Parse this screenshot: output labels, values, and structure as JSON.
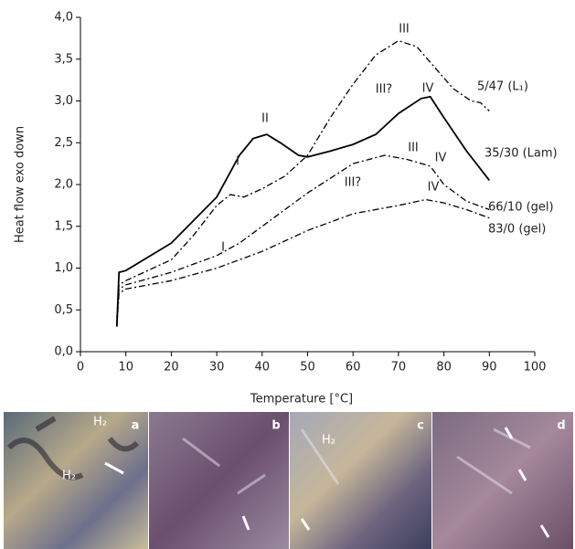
{
  "chart_data": {
    "type": "line",
    "xlabel": "Temperature [°C]",
    "ylabel": "Heat flow exo down",
    "xlim": [
      0,
      100
    ],
    "xticks": [
      0,
      10,
      20,
      30,
      40,
      50,
      60,
      70,
      80,
      90,
      100
    ],
    "ylim": [
      0,
      4
    ],
    "yticks": [
      {
        "value": 0,
        "label": "0,0"
      },
      {
        "value": 0.5,
        "label": "0,5"
      },
      {
        "value": 1,
        "label": "1,0"
      },
      {
        "value": 1.5,
        "label": "1,5"
      },
      {
        "value": 2,
        "label": "2,0"
      },
      {
        "value": 2.5,
        "label": "2,5"
      },
      {
        "value": 3,
        "label": "3,0"
      },
      {
        "value": 3.5,
        "label": "3,5"
      },
      {
        "value": 4,
        "label": "4,0"
      }
    ],
    "series": [
      {
        "name": "5/47 (L₁)",
        "color": "#000000",
        "dash": "dashdot",
        "x": [
          8,
          8.5,
          10,
          20,
          25,
          30,
          33,
          36,
          40,
          45,
          50,
          55,
          60,
          65,
          70,
          74,
          78,
          82,
          86,
          88,
          90
        ],
        "values": [
          0.4,
          0.8,
          0.85,
          1.1,
          1.4,
          1.75,
          1.88,
          1.85,
          1.95,
          2.1,
          2.35,
          2.8,
          3.2,
          3.55,
          3.72,
          3.65,
          3.4,
          3.15,
          3.0,
          2.98,
          2.88
        ]
      },
      {
        "name": "35/30 (Lam)",
        "color": "#000000",
        "dash": "solid",
        "x": [
          8,
          8.5,
          10,
          20,
          30,
          35,
          38,
          41,
          44,
          48,
          50,
          55,
          60,
          65,
          70,
          75,
          77,
          80,
          85,
          90
        ],
        "values": [
          0.3,
          0.95,
          0.97,
          1.3,
          1.85,
          2.35,
          2.55,
          2.6,
          2.5,
          2.35,
          2.33,
          2.4,
          2.48,
          2.6,
          2.85,
          3.03,
          3.05,
          2.8,
          2.4,
          2.05
        ]
      },
      {
        "name": "66/10 (gel)",
        "color": "#000000",
        "dash": "dashdot",
        "x": [
          8,
          8.5,
          10,
          20,
          30,
          35,
          40,
          50,
          60,
          67,
          72,
          77,
          80,
          85,
          90
        ],
        "values": [
          0.35,
          0.75,
          0.8,
          0.95,
          1.15,
          1.3,
          1.5,
          1.9,
          2.25,
          2.35,
          2.3,
          2.22,
          2.0,
          1.8,
          1.7
        ]
      },
      {
        "name": "83/0 (gel)",
        "color": "#000000",
        "dash": "dashdot",
        "x": [
          8,
          8.5,
          10,
          20,
          30,
          40,
          50,
          60,
          70,
          76,
          80,
          85,
          90
        ],
        "values": [
          0.3,
          0.7,
          0.75,
          0.85,
          1.0,
          1.2,
          1.45,
          1.65,
          1.75,
          1.82,
          1.78,
          1.7,
          1.6
        ]
      }
    ],
    "annotations": [
      "III",
      "II",
      "IV",
      "III?",
      "I",
      "III",
      "IV",
      "IV",
      "III?",
      "I"
    ]
  },
  "panels": [
    {
      "label": "a",
      "notes": [
        "H₂",
        "H₂"
      ]
    },
    {
      "label": "b",
      "notes": []
    },
    {
      "label": "c",
      "notes": [
        "H₂"
      ]
    },
    {
      "label": "d",
      "notes": []
    }
  ]
}
